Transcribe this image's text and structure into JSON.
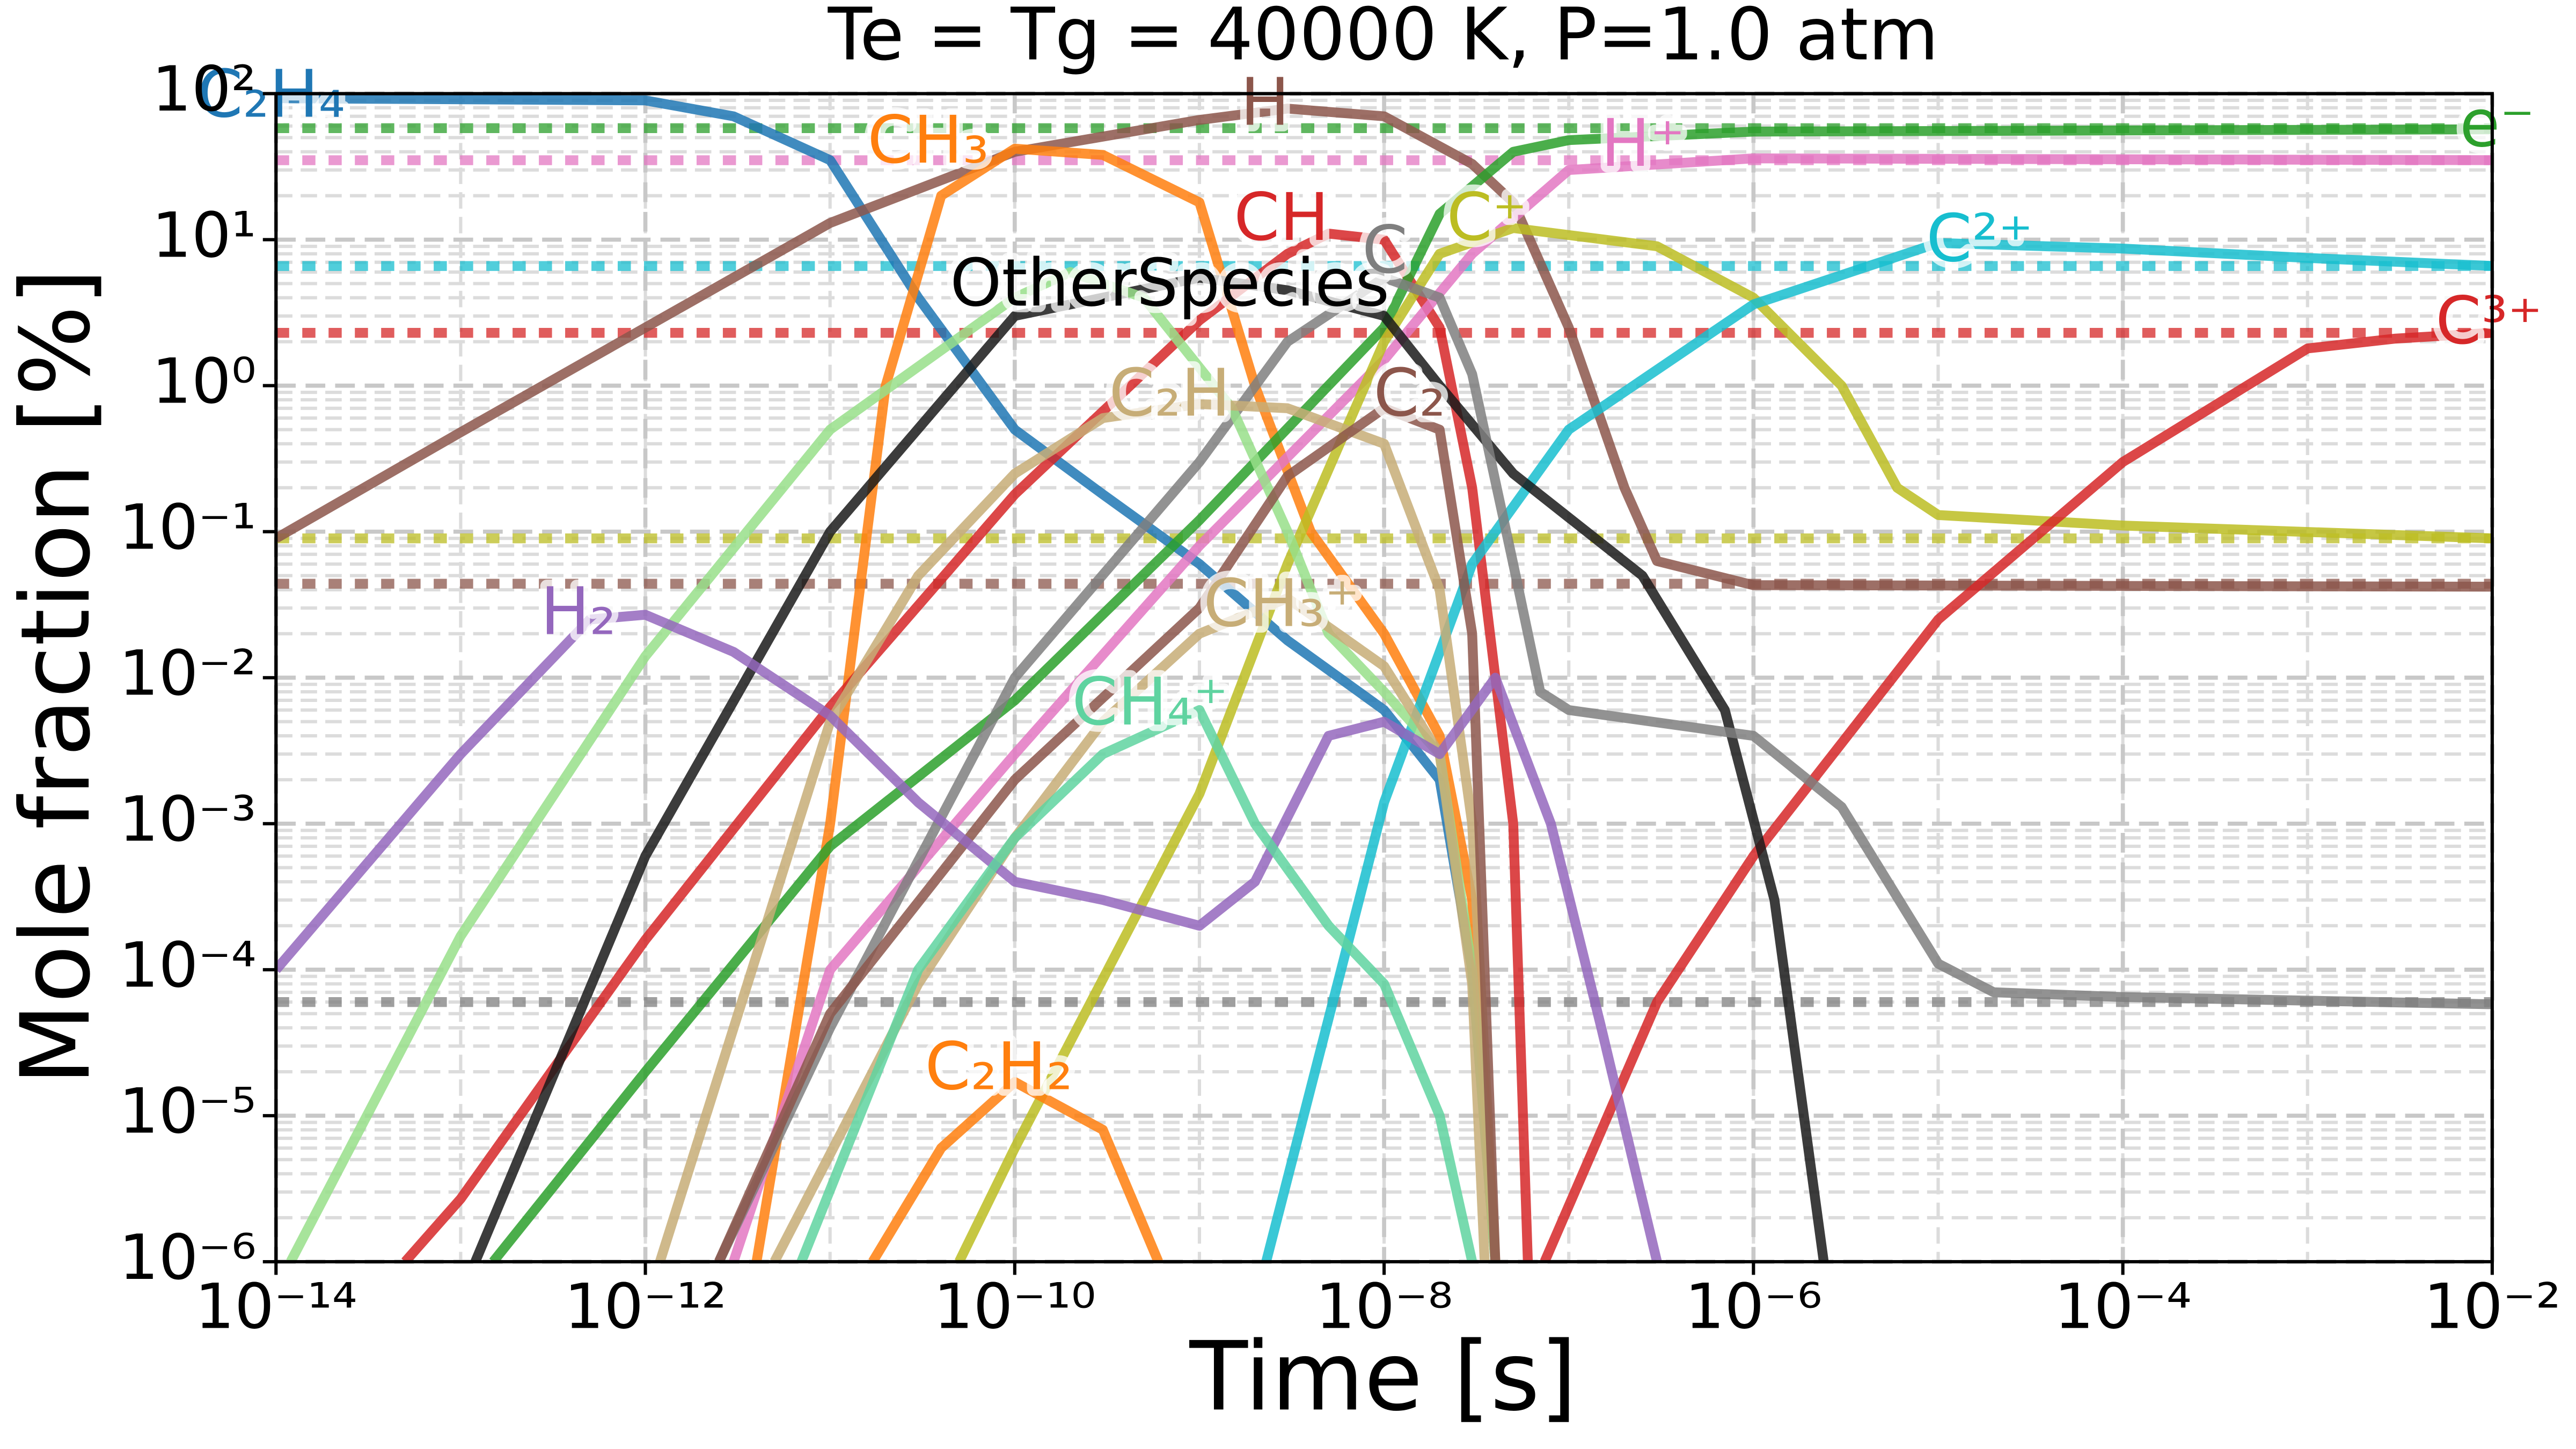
{
  "chart_data": {
    "type": "line",
    "title": "Te = Tg = 40000 K, P=1.0 atm",
    "x_label": "Time [s]",
    "y_label": "Mole fraction [%]",
    "log_x": true,
    "log_y": true,
    "grid": true,
    "xlim": [
      1e-14,
      0.01
    ],
    "ylim": [
      1e-06,
      100
    ],
    "xticks": [
      {
        "value": 1e-14,
        "label": "10⁻¹⁴"
      },
      {
        "value": 1e-12,
        "label": "10⁻¹²"
      },
      {
        "value": 1e-10,
        "label": "10⁻¹⁰"
      },
      {
        "value": 1e-08,
        "label": "10⁻⁸"
      },
      {
        "value": 1e-06,
        "label": "10⁻⁶"
      },
      {
        "value": 0.0001,
        "label": "10⁻⁴"
      },
      {
        "value": 0.01,
        "label": "10⁻²"
      }
    ],
    "yticks": [
      {
        "value": 1e-06,
        "label": "10⁻⁶"
      },
      {
        "value": 1e-05,
        "label": "10⁻⁵"
      },
      {
        "value": 0.0001,
        "label": "10⁻⁴"
      },
      {
        "value": 0.001,
        "label": "10⁻³"
      },
      {
        "value": 0.01,
        "label": "10⁻²"
      },
      {
        "value": 0.1,
        "label": "10⁻¹"
      },
      {
        "value": 1,
        "label": "10⁰"
      },
      {
        "value": 10,
        "label": "10¹"
      },
      {
        "value": 100,
        "label": "10²"
      }
    ],
    "series": [
      {
        "name": "C₂H₄",
        "color": "#1f77b4",
        "x": [
          1e-14,
          1e-12,
          3e-12,
          1e-11,
          3e-11,
          1e-10,
          3e-10,
          1e-09,
          3e-09,
          1e-08,
          2e-08,
          3e-08,
          4e-08
        ],
        "values": [
          93,
          90,
          70,
          35,
          4,
          0.5,
          0.18,
          0.06,
          0.018,
          0.006,
          0.002,
          0.0001,
          1e-06
        ]
      },
      {
        "name": "H",
        "color": "#8c564b",
        "equilibrium": 0.044,
        "x": [
          1e-14,
          1e-13,
          1e-12,
          1e-11,
          1e-10,
          1e-09,
          3e-09,
          1e-08,
          3e-08,
          5e-08,
          1e-07,
          2e-07,
          3e-07,
          1e-06,
          0.01
        ],
        "values": [
          0.09,
          0.48,
          2.5,
          13,
          40,
          66,
          79,
          70,
          33,
          18,
          2.5,
          0.2,
          0.063,
          0.043,
          0.042
        ]
      },
      {
        "name": "CH₃",
        "color": "#ff7f0e",
        "x": [
          4e-12,
          1e-11,
          2e-11,
          4e-11,
          1e-10,
          3e-10,
          1e-09,
          2e-09,
          4e-09,
          1e-08,
          2e-08,
          3e-08,
          4e-08
        ],
        "values": [
          1e-06,
          0.001,
          1,
          20,
          42,
          38,
          18,
          1,
          0.1,
          0.02,
          0.004,
          0.0003,
          1e-06
        ]
      },
      {
        "name": "CH",
        "color": "#d62728",
        "x": [
          5e-14,
          1e-13,
          1e-12,
          1e-11,
          1e-10,
          1e-09,
          3e-09,
          5e-09,
          1e-08,
          2e-08,
          3e-08,
          5e-08,
          6e-08
        ],
        "values": [
          1e-06,
          2.7e-06,
          0.00016,
          0.0063,
          0.18,
          2.8,
          8,
          11,
          10,
          2.5,
          0.2,
          0.001,
          1e-06
        ]
      },
      {
        "name": "e⁻",
        "color": "#2ca02c",
        "equilibrium": 58,
        "x": [
          1.5e-13,
          1e-12,
          1e-11,
          1e-10,
          1e-09,
          1e-08,
          2e-08,
          5e-08,
          1e-07,
          1e-06,
          0.01
        ],
        "values": [
          1e-06,
          2e-05,
          0.0007,
          0.007,
          0.12,
          2.5,
          15,
          40,
          48,
          55,
          57
        ]
      },
      {
        "name": "H⁺",
        "color": "#e377c2",
        "equilibrium": 35,
        "x": [
          3e-12,
          1e-11,
          1e-10,
          1e-09,
          1e-08,
          3e-08,
          1e-07,
          1e-06,
          0.01
        ],
        "values": [
          1e-06,
          0.0001,
          0.003,
          0.08,
          1.5,
          8,
          30,
          36,
          35
        ]
      },
      {
        "name": "C⁺",
        "color": "#bcbd22",
        "equilibrium": 0.09,
        "x": [
          5e-11,
          1e-10,
          1e-09,
          3e-09,
          1e-08,
          2e-08,
          5e-08,
          3e-07,
          1e-06,
          3e-06,
          6e-06,
          1e-05,
          0.0001,
          0.01
        ],
        "values": [
          1e-06,
          6e-06,
          0.0016,
          0.06,
          2,
          8,
          12,
          9,
          4,
          1,
          0.2,
          0.13,
          0.11,
          0.09
        ]
      },
      {
        "name": "C²⁺",
        "color": "#17becf",
        "equilibrium": 6.6,
        "x": [
          2.3e-09,
          1e-08,
          3e-08,
          1e-07,
          1e-06,
          1e-05,
          0.0001,
          0.001,
          0.01
        ],
        "values": [
          1e-06,
          0.0014,
          0.06,
          0.5,
          3.6,
          9.5,
          8.7,
          7.5,
          6.6
        ]
      },
      {
        "name": "C³⁺",
        "color": "#d62728",
        "equilibrium": 2.3,
        "x": [
          7.4e-08,
          3e-07,
          1e-06,
          1e-05,
          0.0001,
          0.001,
          0.003,
          0.01
        ],
        "values": [
          1e-06,
          6e-05,
          0.0006,
          0.025,
          0.3,
          1.8,
          2.1,
          2.3
        ]
      },
      {
        "name": "OtherSpecies",
        "color": "#1a1a1a",
        "x": [
          1.2e-13,
          1e-12,
          1e-11,
          1e-10,
          1e-09,
          3e-09,
          1e-08,
          2e-08,
          5e-08,
          2.5e-07,
          7e-07,
          1.3e-06,
          2.4e-06
        ],
        "values": [
          1e-06,
          0.0006,
          0.1,
          3,
          5.5,
          4.5,
          3,
          1,
          0.25,
          0.05,
          0.006,
          0.0003,
          1e-06
        ]
      },
      {
        "name": "C",
        "color": "#7f7f7f",
        "equilibrium": 6e-05,
        "x": [
          2.5e-12,
          1e-11,
          1e-10,
          1e-09,
          3e-09,
          1e-08,
          2e-08,
          3e-08,
          5e-08,
          7e-08,
          1e-07,
          1e-06,
          3e-06,
          1e-05,
          2e-05,
          0.0001,
          0.01
        ],
        "values": [
          1e-06,
          4e-05,
          0.01,
          0.3,
          2,
          5.5,
          4,
          1.2,
          0.06,
          0.008,
          0.006,
          0.004,
          0.0013,
          0.00011,
          7e-05,
          6.5e-05,
          5.8e-05
        ]
      },
      {
        "name": null,
        "color": "#98df8a",
        "x": [
          1.2e-14,
          1e-13,
          1e-12,
          1e-11,
          1e-10,
          2e-10,
          5e-10,
          1.5e-09,
          3e-09,
          5e-09,
          1e-08,
          2e-08,
          3e-08,
          4e-08
        ],
        "values": [
          1e-06,
          0.00017,
          0.014,
          0.5,
          4,
          6,
          4,
          0.7,
          0.1,
          0.02,
          0.008,
          0.003,
          0.0001,
          1e-06
        ]
      },
      {
        "name": "C₂H",
        "color": "#c7ad77",
        "x": [
          1.2e-12,
          1e-11,
          3e-11,
          1e-10,
          3e-10,
          1e-09,
          3e-09,
          1e-08,
          2e-08,
          3e-08,
          4e-08
        ],
        "values": [
          1e-06,
          0.005,
          0.05,
          0.25,
          0.6,
          0.75,
          0.7,
          0.4,
          0.04,
          0.001,
          1e-06
        ]
      },
      {
        "name": "CH₃⁺",
        "color": "#c7ad77",
        "x": [
          5e-12,
          3e-11,
          1e-10,
          3e-10,
          1e-09,
          3e-09,
          1e-08,
          2e-08,
          3e-08,
          3.5e-08
        ],
        "values": [
          1e-06,
          8e-05,
          0.0008,
          0.005,
          0.02,
          0.035,
          0.012,
          0.003,
          8e-05,
          1e-06
        ]
      },
      {
        "name": "C₂",
        "color": "#8c564b",
        "x": [
          2.5e-12,
          1e-11,
          1e-10,
          1e-09,
          3e-09,
          1e-08,
          2e-08,
          3e-08,
          4e-08
        ],
        "values": [
          1e-06,
          5e-05,
          0.002,
          0.03,
          0.24,
          0.7,
          0.5,
          0.02,
          1e-06
        ]
      },
      {
        "name": "H₂",
        "color": "#9467bd",
        "x": [
          1e-14,
          1e-13,
          5e-13,
          1e-12,
          3e-12,
          1e-11,
          3e-11,
          1e-10,
          3e-10,
          1e-09,
          2e-09,
          5e-09,
          1e-08,
          2e-08,
          4e-08,
          8e-08,
          1.5e-07,
          3e-07
        ],
        "values": [
          0.0001,
          0.003,
          0.025,
          0.027,
          0.015,
          0.0055,
          0.0014,
          0.0004,
          0.0003,
          0.0002,
          0.0004,
          0.004,
          0.005,
          0.003,
          0.01,
          0.001,
          4e-05,
          1e-06
        ]
      },
      {
        "name": "CH₄⁺",
        "color": "#5fd3a0",
        "x": [
          7e-12,
          3e-11,
          1e-10,
          3e-10,
          1e-09,
          2e-09,
          5e-09,
          1e-08,
          2e-08,
          3e-08
        ],
        "values": [
          1e-06,
          0.0001,
          0.0008,
          0.003,
          0.006,
          0.001,
          0.0002,
          8e-05,
          1e-05,
          1e-06
        ]
      },
      {
        "name": "C₂H₂",
        "color": "#ff7f0e",
        "x": [
          1.7e-11,
          4e-11,
          1e-10,
          3e-10,
          6e-10
        ],
        "values": [
          1e-06,
          6e-06,
          1.7e-05,
          8e-06,
          1e-06
        ]
      }
    ]
  }
}
